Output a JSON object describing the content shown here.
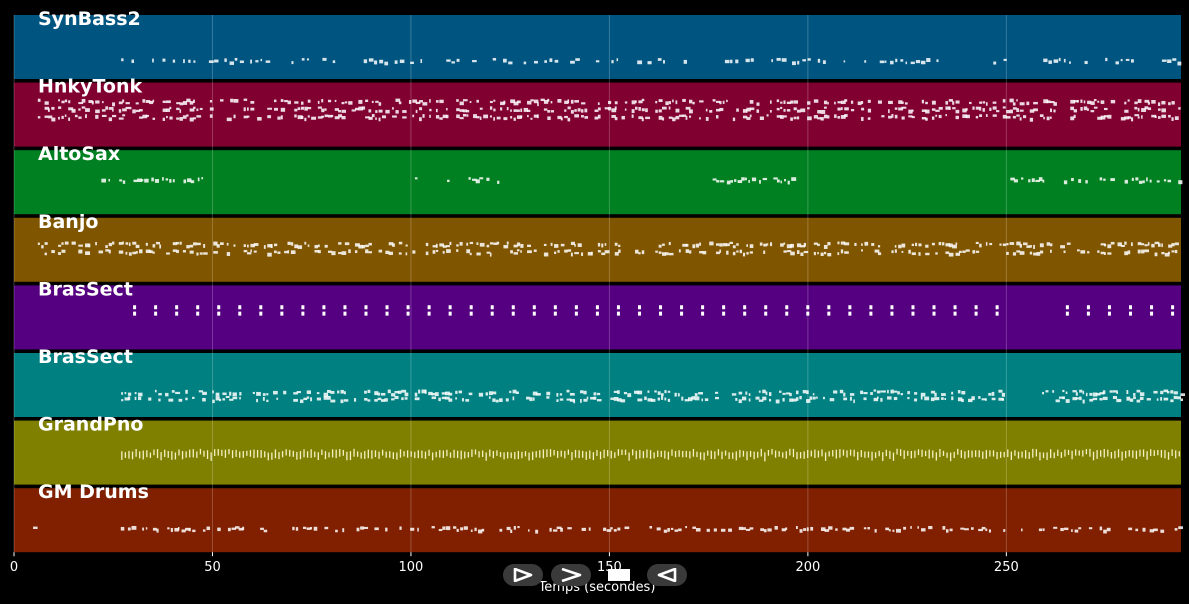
{
  "chart_data": {
    "type": "piano-roll",
    "xlabel": "Temps (secondes)",
    "xlim": [
      0,
      294
    ],
    "xticks": [
      0,
      50,
      100,
      150,
      200,
      250
    ],
    "grid": true,
    "tracks": [
      {
        "name": "SynBass2",
        "color": "#005580",
        "segments": [
          [
            27,
            250
          ],
          [
            258,
            294
          ]
        ],
        "density": "sparse"
      },
      {
        "name": "HnkyTonk",
        "color": "#800030",
        "segments": [
          [
            6,
            294
          ]
        ],
        "density": "dense"
      },
      {
        "name": "AltoSax",
        "color": "#008020",
        "segments": [
          [
            22,
            48
          ],
          [
            101,
            122
          ],
          [
            176,
            197
          ],
          [
            251,
            294
          ]
        ],
        "density": "medium"
      },
      {
        "name": "Banjo",
        "color": "#805500",
        "segments": [
          [
            6,
            294
          ]
        ],
        "density": "dense"
      },
      {
        "name": "BrasSect",
        "color": "#550080",
        "segments": [
          [
            30,
            250
          ],
          [
            265,
            294
          ]
        ],
        "density": "pulse"
      },
      {
        "name": "BrasSect",
        "color": "#008080",
        "segments": [
          [
            27,
            250
          ],
          [
            259,
            294
          ]
        ],
        "density": "dense"
      },
      {
        "name": "GrandPno",
        "color": "#808000",
        "segments": [
          [
            27,
            294
          ]
        ],
        "density": "comb"
      },
      {
        "name": "GM Drums",
        "color": "#802000",
        "segments": [
          [
            3,
            5
          ],
          [
            26,
            294
          ]
        ],
        "density": "medium"
      }
    ]
  },
  "controls": [
    {
      "name": "play-icon",
      "glyph": "⊳"
    },
    {
      "name": "forward-icon",
      "glyph": ">"
    },
    {
      "name": "stop-icon",
      "glyph": "■"
    },
    {
      "name": "back-icon",
      "glyph": "◁"
    }
  ]
}
